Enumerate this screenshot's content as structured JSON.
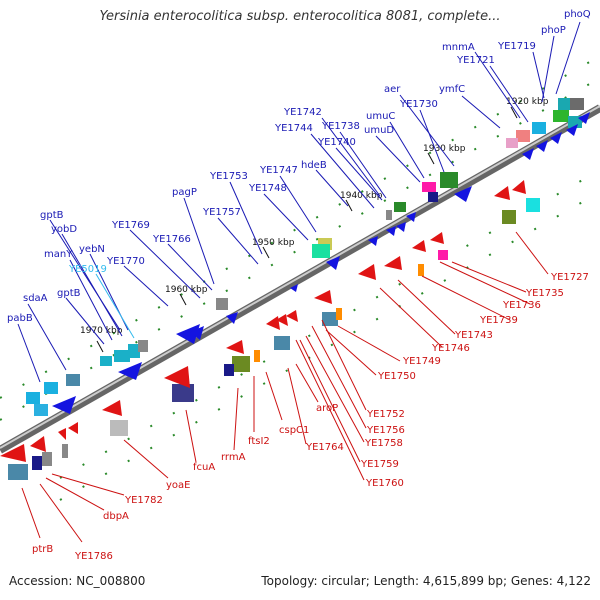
{
  "title": "Yersinia enterocolitica subsp. enterocolitica 8081, complete...",
  "footer": {
    "accession": "Accession: NC_008800",
    "topology": "Topology: circular; Length: 4,615,899 bp; Genes: 4,122"
  },
  "scale_labels": [
    "1920 kbp",
    "1930 kbp",
    "1940 kbp",
    "1950 kbp",
    "1960 kbp",
    "1970 kbp"
  ],
  "forward_gene_labels": [
    "phoQ",
    "YE1719",
    "phoP",
    "mnmA",
    "YE1721",
    "ymfC",
    "aer",
    "YE1730",
    "umuC",
    "umuD",
    "YE1738",
    "YE1740",
    "YE1742",
    "YE1744",
    "hdeB",
    "YE1747",
    "YE1748",
    "YE1753",
    "YE1757",
    "pagP",
    "YE1766",
    "YE1769",
    "YE1770",
    "gptB",
    "yobD",
    "yebN",
    "manY",
    "YE5019",
    "gptB",
    "sdaA",
    "pabB"
  ],
  "reverse_gene_labels": [
    "YE1727",
    "YE1735",
    "YE1736",
    "YE1739",
    "YE1743",
    "YE1746",
    "YE1749",
    "YE1750",
    "YE1752",
    "YE1756",
    "YE1758",
    "YE1759",
    "YE1760",
    "aroP",
    "YE1764",
    "cspC1",
    "ftsI2",
    "rrmA",
    "fcuA",
    "yoaE",
    "YE1782",
    "dbpA",
    "YE1786",
    "ptrB"
  ],
  "colors": {
    "forward_label": "#1a1ab4",
    "reverse_label": "#cc1111",
    "highlight_label": "#33bbee",
    "forward_arrow": "#1414e0",
    "reverse_arrow": "#e01414",
    "backbone": "#8c8c8c",
    "tick": "#2a8a2a"
  }
}
